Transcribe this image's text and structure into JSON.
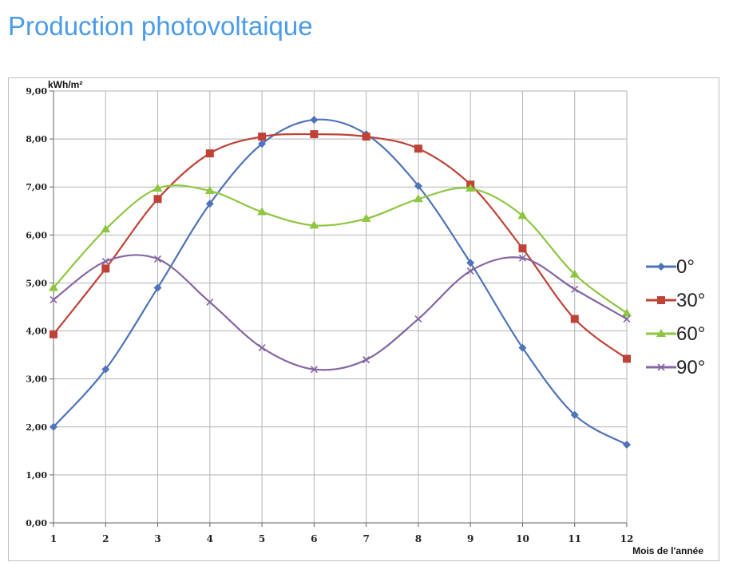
{
  "page": {
    "title": "Production photovoltaique"
  },
  "chart_data": {
    "type": "line",
    "title": "",
    "xlabel": "Mois de l'année",
    "ylabel": "kWh/m²",
    "x": [
      1,
      2,
      3,
      4,
      5,
      6,
      7,
      8,
      9,
      10,
      11,
      12
    ],
    "x_tick_labels": [
      "1",
      "2",
      "3",
      "4",
      "5",
      "6",
      "7",
      "8",
      "9",
      "10",
      "11",
      "12"
    ],
    "ylim": [
      0,
      9
    ],
    "y_tick_labels": [
      "0,00",
      "1,00",
      "2,00",
      "3,00",
      "4,00",
      "5,00",
      "6,00",
      "7,00",
      "8,00",
      "9,00"
    ],
    "grid": true,
    "smooth": true,
    "legend_position": "right",
    "series": [
      {
        "name": "0°",
        "color": "#4f73b8",
        "marker": "diamond",
        "values": [
          2.0,
          3.2,
          4.9,
          6.65,
          7.9,
          8.4,
          8.1,
          7.02,
          5.42,
          3.65,
          2.25,
          1.63
        ]
      },
      {
        "name": "30°",
        "color": "#bf4237",
        "marker": "square",
        "values": [
          3.93,
          5.3,
          6.75,
          7.7,
          8.05,
          8.1,
          8.05,
          7.8,
          7.05,
          5.72,
          4.25,
          3.42
        ]
      },
      {
        "name": "60°",
        "color": "#8dc63f",
        "marker": "triangle",
        "values": [
          4.9,
          6.12,
          6.97,
          6.92,
          6.48,
          6.2,
          6.34,
          6.75,
          6.97,
          6.4,
          5.18,
          4.37
        ]
      },
      {
        "name": "90°",
        "color": "#8466a3",
        "marker": "x",
        "values": [
          4.65,
          5.45,
          5.5,
          4.6,
          3.65,
          3.2,
          3.4,
          4.25,
          5.25,
          5.52,
          4.87,
          4.25
        ]
      }
    ]
  }
}
